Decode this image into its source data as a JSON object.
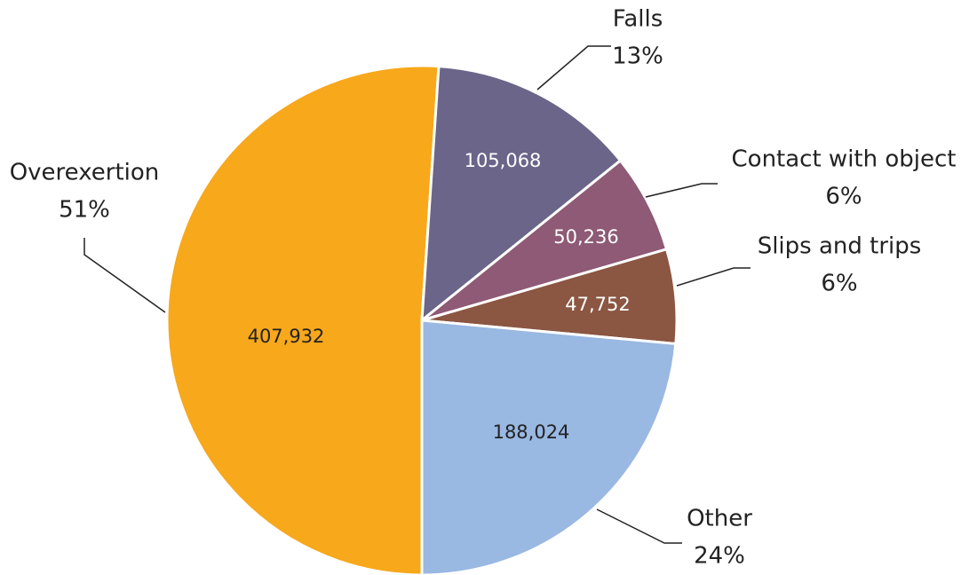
{
  "chart_data": {
    "type": "pie",
    "categories": [
      "Overexertion",
      "Falls",
      "Contact with object",
      "Slips and trips",
      "Other"
    ],
    "values": [
      407932,
      105068,
      50236,
      47752,
      188024
    ],
    "value_labels": [
      "407,932",
      "105,068",
      "50,236",
      "47,752",
      "188,024"
    ],
    "percent_labels": [
      "51%",
      "13%",
      "6%",
      "6%",
      "24%"
    ],
    "colors": [
      "#f7a81b",
      "#6a6589",
      "#8e5a75",
      "#8b5642",
      "#99b8e2"
    ],
    "value_label_colors": [
      "#222222",
      "#ffffff",
      "#ffffff",
      "#ffffff",
      "#222222"
    ]
  }
}
